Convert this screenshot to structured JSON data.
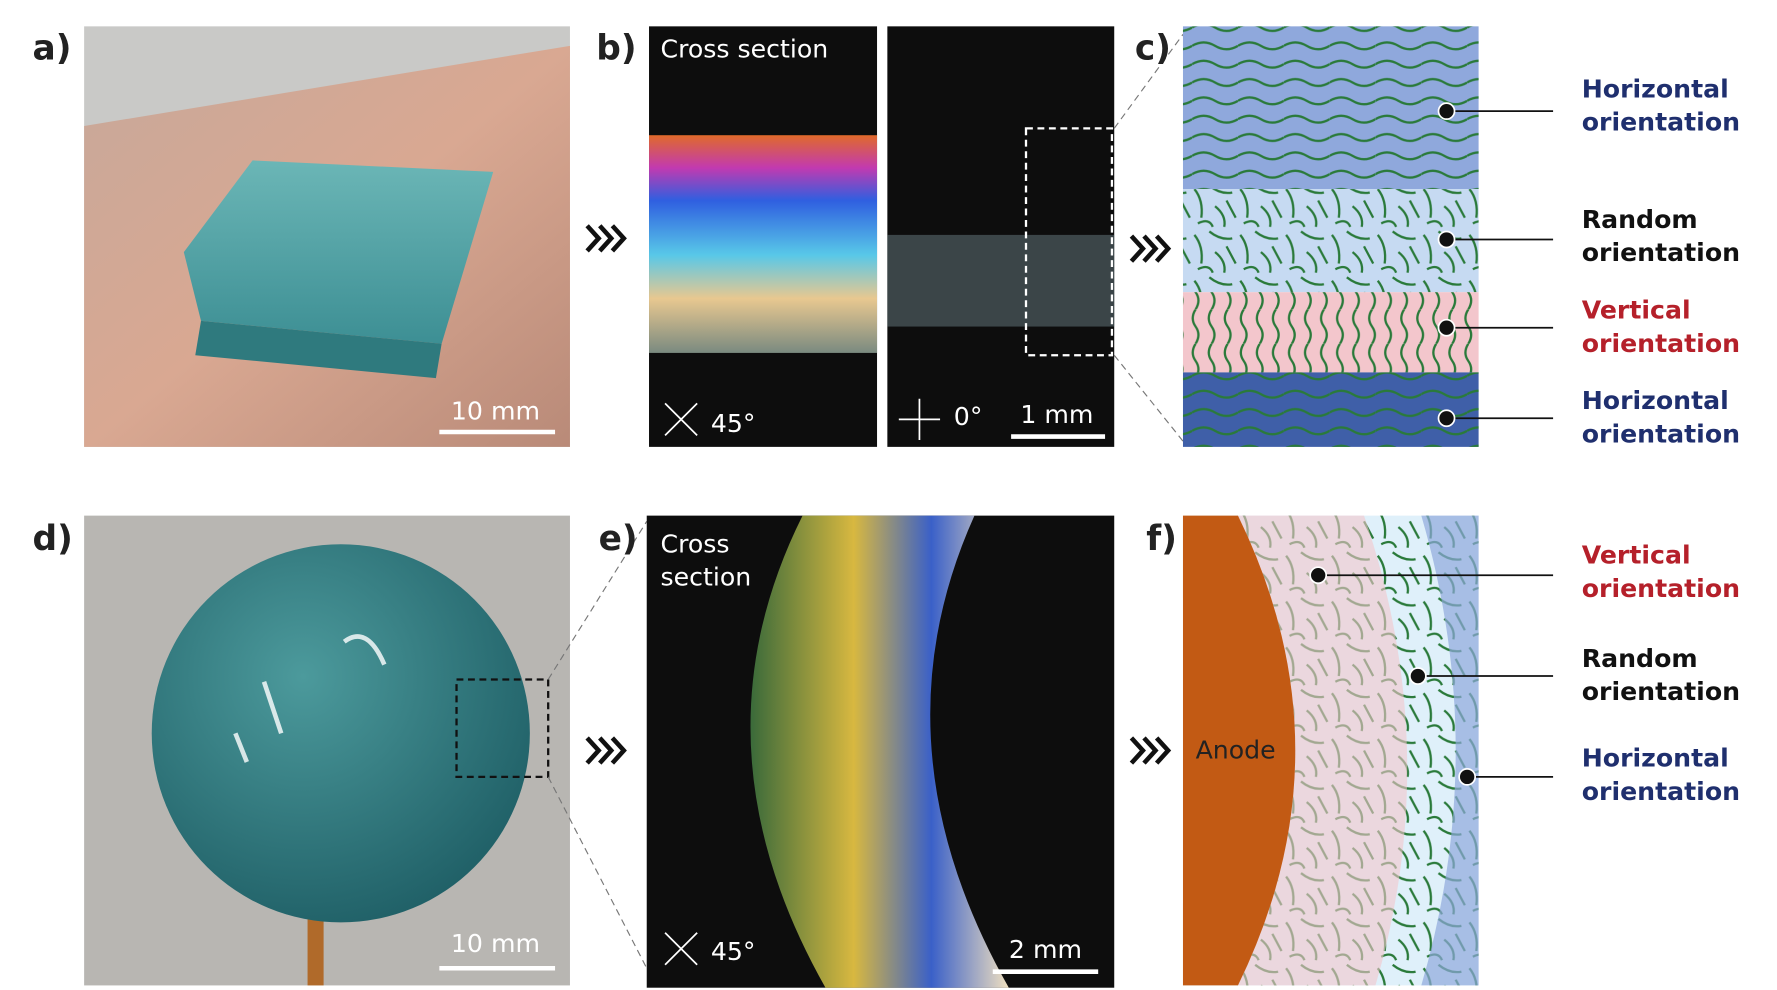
{
  "panel_a": {
    "label": "a)",
    "scale_bar": "10 mm"
  },
  "panel_b": {
    "label": "b)",
    "caption": "Cross section",
    "angle_left": "45°",
    "angle_right": "0°",
    "scale_bar": "1 mm"
  },
  "panel_c": {
    "label": "c)",
    "layers": [
      {
        "line1": "Horizontal",
        "line2": "orientation",
        "color": "#1f2f6e"
      },
      {
        "line1": "Random",
        "line2": "orientation",
        "color": "#111111"
      },
      {
        "line1": "Vertical",
        "line2": "orientation",
        "color": "#b5202a"
      },
      {
        "line1": "Horizontal",
        "line2": "orientation",
        "color": "#1f2f6e"
      }
    ]
  },
  "panel_d": {
    "label": "d)",
    "scale_bar": "10 mm"
  },
  "panel_e": {
    "label": "e)",
    "caption_line1": "Cross",
    "caption_line2": "section",
    "angle": "45°",
    "scale_bar": "2 mm"
  },
  "panel_f": {
    "label": "f)",
    "electrode": "Anode",
    "layers": [
      {
        "line1": "Vertical",
        "line2": "orientation",
        "color": "#b5202a"
      },
      {
        "line1": "Random",
        "line2": "orientation",
        "color": "#111111"
      },
      {
        "line1": "Horizontal",
        "line2": "orientation",
        "color": "#1f2f6e"
      }
    ]
  }
}
